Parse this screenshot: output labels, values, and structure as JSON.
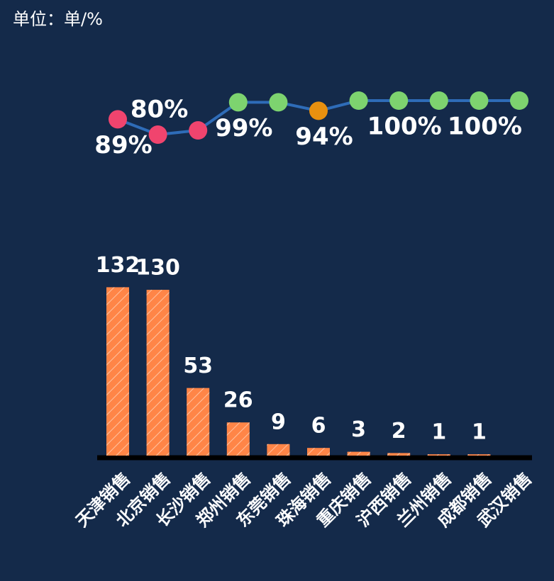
{
  "chart_data": {
    "type": "combo",
    "title": "单位：单/%",
    "categories": [
      "天津销售",
      "北京销售",
      "长沙销售",
      "郑州销售",
      "东莞销售",
      "珠海销售",
      "重庆销售",
      "沪西销售",
      "兰州销售",
      "成都销售",
      "武汉销售"
    ],
    "series": [
      {
        "type": "bar",
        "color": "#ff8547",
        "values": [
          132,
          130,
          53,
          26,
          9,
          6,
          3,
          2,
          1,
          1,
          null
        ]
      },
      {
        "type": "line",
        "color": "#2e6cb8",
        "values": [
          89,
          80,
          82.5,
          99,
          99,
          94,
          100,
          100,
          100,
          100,
          100
        ],
        "value_labels": [
          "89%",
          "80%",
          null,
          "99%",
          null,
          "94%",
          null,
          "100%",
          null,
          "100%",
          null
        ],
        "point_colors": [
          "#f0446e",
          "#f0446e",
          "#f0446e",
          "#7dd36f",
          "#7dd36f",
          "#e8900f",
          "#7dd36f",
          "#7dd36f",
          "#7dd36f",
          "#7dd36f",
          "#7dd36f"
        ]
      }
    ]
  }
}
